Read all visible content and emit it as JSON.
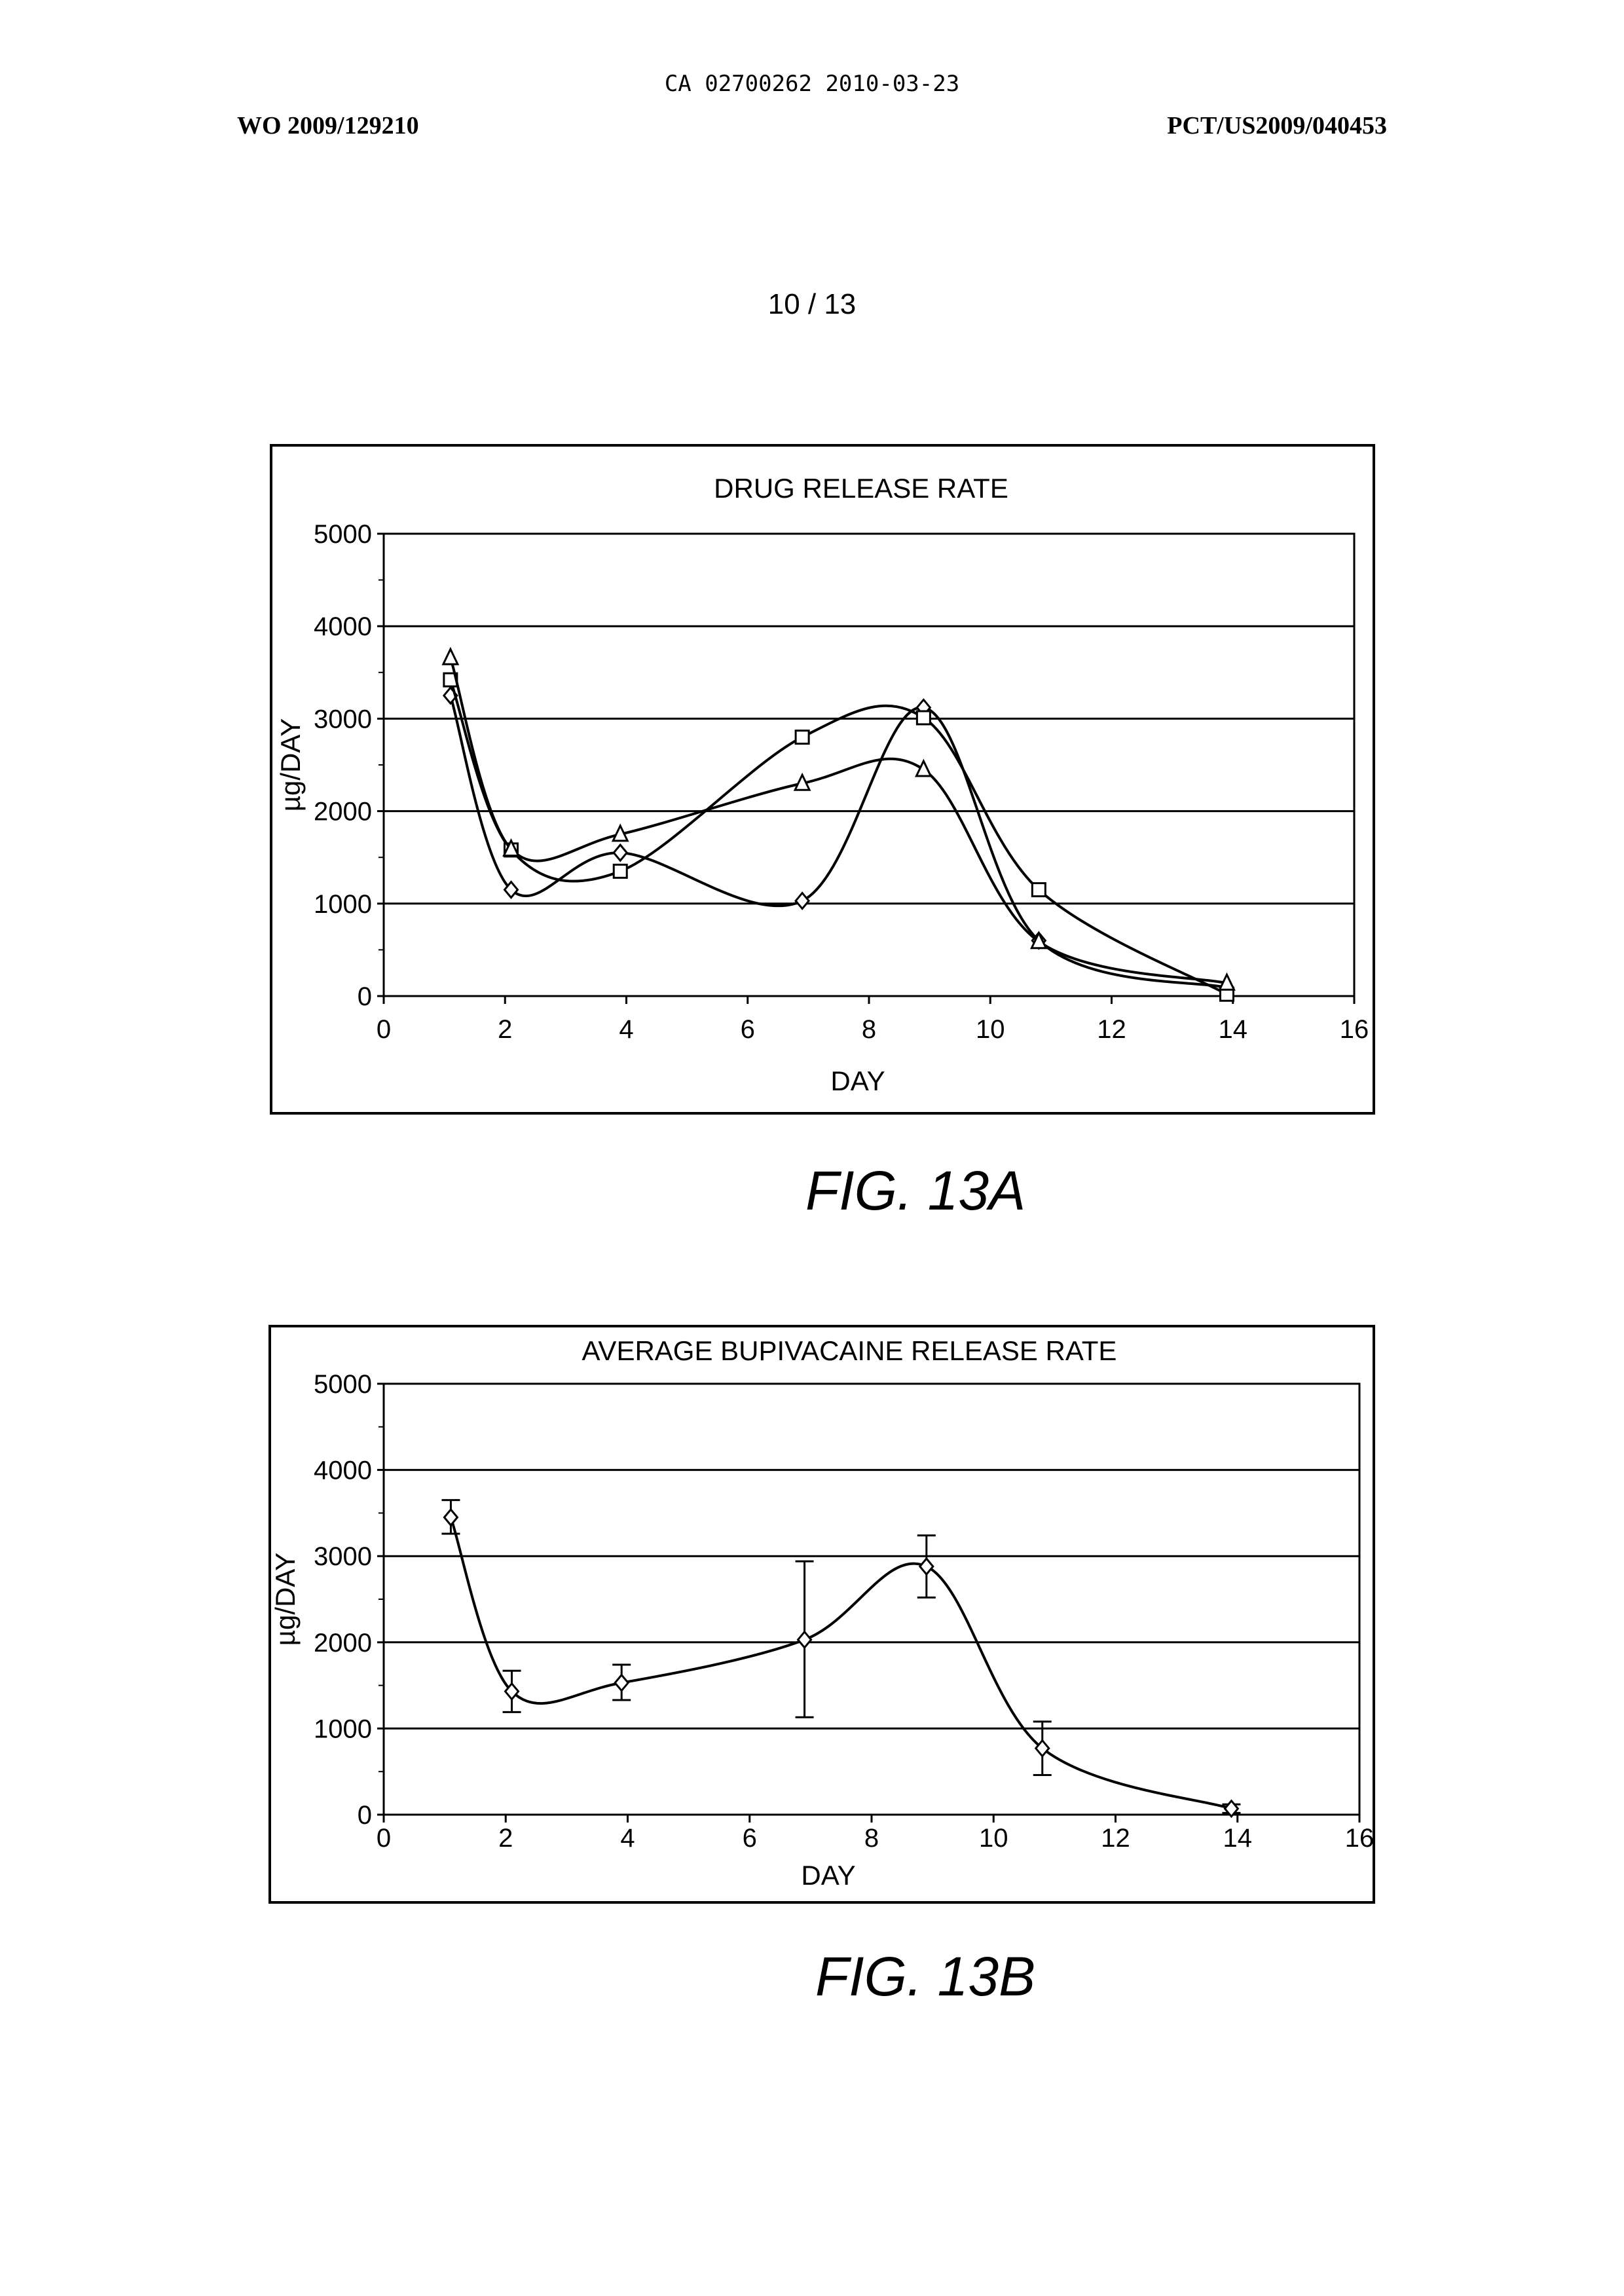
{
  "header": {
    "center": "CA 02700262 2010-03-23",
    "left": "WO 2009/129210",
    "right": "PCT/US2009/040453"
  },
  "page_number": "10 / 13",
  "figures": {
    "a_label": "FIG. 13A",
    "b_label": "FIG. 13B"
  },
  "chart_data": [
    {
      "type": "line",
      "title": "DRUG RELEASE RATE",
      "xlabel": "DAY",
      "ylabel": "µg/DAY",
      "xlim": [
        0,
        16
      ],
      "ylim": [
        0,
        5000
      ],
      "xticks": [
        "0",
        "2",
        "4",
        "6",
        "8",
        "10",
        "12",
        "14",
        "16"
      ],
      "yticks": [
        "0",
        "1000",
        "2000",
        "3000",
        "4000",
        "5000"
      ],
      "grid": "horizontal",
      "legend": "none",
      "series": [
        {
          "marker": "diamond",
          "x": [
            1.1,
            2.1,
            3.9,
            6.9,
            8.9,
            10.8,
            13.9
          ],
          "y": [
            3250,
            1150,
            1550,
            1030,
            3120,
            600,
            90
          ]
        },
        {
          "marker": "square",
          "x": [
            1.1,
            2.1,
            3.9,
            6.9,
            8.9,
            10.8,
            13.9
          ],
          "y": [
            3420,
            1580,
            1350,
            2800,
            3010,
            1150,
            20
          ]
        },
        {
          "marker": "triangle",
          "x": [
            1.1,
            2.1,
            3.9,
            6.9,
            8.9,
            10.8,
            13.9
          ],
          "y": [
            3660,
            1590,
            1750,
            2300,
            2450,
            590,
            140
          ]
        }
      ]
    },
    {
      "type": "line",
      "title": "AVERAGE BUPIVACAINE RELEASE RATE",
      "xlabel": "DAY",
      "ylabel": "µg/DAY",
      "xlim": [
        0,
        16
      ],
      "ylim": [
        0,
        5000
      ],
      "xticks": [
        "0",
        "2",
        "4",
        "6",
        "8",
        "10",
        "12",
        "14",
        "16"
      ],
      "yticks": [
        "0",
        "1000",
        "2000",
        "3000",
        "4000",
        "5000"
      ],
      "grid": "horizontal",
      "legend": "none",
      "series": [
        {
          "marker": "diamond",
          "x": [
            1.1,
            2.1,
            3.9,
            6.9,
            8.9,
            10.8,
            13.9
          ],
          "y": [
            3450,
            1430,
            1530,
            2030,
            2880,
            770,
            70
          ],
          "err_low": [
            3260,
            1190,
            1330,
            1130,
            2520,
            460,
            20
          ],
          "err_high": [
            3650,
            1670,
            1740,
            2940,
            3240,
            1080,
            120
          ]
        }
      ]
    }
  ]
}
